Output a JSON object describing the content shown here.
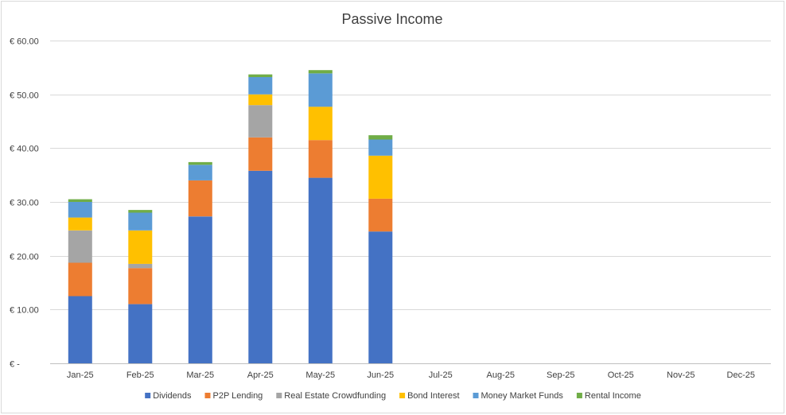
{
  "chart_data": {
    "type": "bar",
    "stacked": true,
    "title": "Passive Income",
    "xlabel": "",
    "ylabel": "",
    "ylim": [
      0,
      60
    ],
    "y_ticks": [
      0,
      10,
      20,
      30,
      40,
      50,
      60
    ],
    "y_tick_labels": [
      "€ -",
      "€ 10.00",
      "€ 20.00",
      "€ 30.00",
      "€ 40.00",
      "€ 50.00",
      "€ 60.00"
    ],
    "grid": true,
    "legend_position": "bottom",
    "categories": [
      "Jan-25",
      "Feb-25",
      "Mar-25",
      "Apr-25",
      "May-25",
      "Jun-25",
      "Jul-25",
      "Aug-25",
      "Sep-25",
      "Oct-25",
      "Nov-25",
      "Dec-25"
    ],
    "series": [
      {
        "name": "Dividends",
        "color": "#4472c4",
        "values": [
          12.5,
          11.0,
          27.3,
          35.8,
          34.5,
          24.5,
          0,
          0,
          0,
          0,
          0,
          0
        ]
      },
      {
        "name": "P2P Lending",
        "color": "#ed7d31",
        "values": [
          6.2,
          6.7,
          6.7,
          6.2,
          7.0,
          6.1,
          0,
          0,
          0,
          0,
          0,
          0
        ]
      },
      {
        "name": "Real Estate Crowdfunding",
        "color": "#a5a5a5",
        "values": [
          6.0,
          0.8,
          0,
          6.0,
          0,
          0,
          0,
          0,
          0,
          0,
          0,
          0
        ]
      },
      {
        "name": "Bond Interest",
        "color": "#ffc000",
        "values": [
          2.4,
          6.2,
          0,
          2.0,
          6.2,
          8.0,
          0,
          0,
          0,
          0,
          0,
          0
        ]
      },
      {
        "name": "Money Market Funds",
        "color": "#5b9bd5",
        "values": [
          2.9,
          3.3,
          2.9,
          3.2,
          6.2,
          3.0,
          0,
          0,
          0,
          0,
          0,
          0
        ]
      },
      {
        "name": "Rental Income",
        "color": "#70ad47",
        "values": [
          0.5,
          0.5,
          0.5,
          0.5,
          0.6,
          0.8,
          0,
          0,
          0,
          0,
          0,
          0
        ]
      }
    ]
  }
}
